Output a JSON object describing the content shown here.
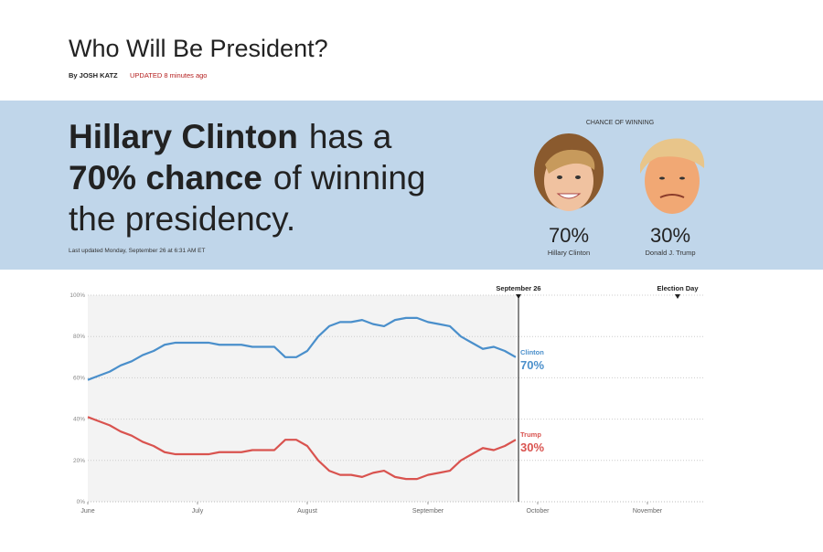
{
  "header": {
    "title": "Who Will Be President?",
    "byline": "By JOSH KATZ",
    "updated": "UPDATED 8 minutes ago"
  },
  "banner": {
    "headline": [
      "Hillary Clinton",
      "has a",
      "70% chance",
      "of winning",
      "the presidency."
    ],
    "last_updated": "Last updated Monday, September 26 at 6:31 AM ET",
    "chance_label": "CHANCE OF WINNING",
    "candidates": [
      {
        "name": "Hillary Clinton",
        "chance": "70%"
      },
      {
        "name": "Donald J. Trump",
        "chance": "30%"
      }
    ]
  },
  "chart_data": {
    "type": "line",
    "categories": [
      "June",
      null,
      null,
      null,
      null,
      null,
      null,
      null,
      null,
      null,
      "July",
      null,
      null,
      null,
      null,
      null,
      null,
      null,
      null,
      null,
      "August",
      null,
      null,
      null,
      null,
      null,
      null,
      null,
      null,
      null,
      null,
      "September",
      null,
      null,
      null,
      null,
      null,
      null,
      null,
      null,
      null,
      "October",
      null,
      null,
      null,
      null,
      null,
      null,
      null,
      null,
      null,
      "November",
      null,
      null,
      null,
      null,
      null
    ],
    "series": [
      {
        "name": "Clinton",
        "color": "#4a8fcb",
        "values": [
          59,
          61,
          63,
          66,
          68,
          71,
          73,
          76,
          77,
          77,
          77,
          77,
          76,
          76,
          76,
          75,
          75,
          75,
          70,
          70,
          73,
          80,
          85,
          87,
          87,
          88,
          86,
          85,
          88,
          89,
          89,
          87,
          86,
          85,
          80,
          77,
          74,
          75,
          73,
          70,
          null,
          null,
          null,
          null,
          null,
          null,
          null,
          null,
          null,
          null,
          null,
          null,
          null,
          null,
          null,
          null,
          null
        ],
        "value_labels": [
          null,
          null,
          null,
          null,
          null,
          null,
          null,
          null,
          null,
          null,
          null,
          null,
          null,
          null,
          null,
          null,
          null,
          null,
          null,
          null,
          null,
          null,
          null,
          null,
          null,
          null,
          null,
          null,
          null,
          null,
          null,
          null,
          null,
          null,
          null,
          null,
          null,
          null,
          null,
          "70%",
          null,
          null,
          null,
          null,
          null,
          null,
          null,
          null,
          null,
          null,
          null,
          null,
          null,
          null,
          null,
          null,
          null
        ]
      },
      {
        "name": "Trump",
        "color": "#d9534f",
        "values": [
          41,
          39,
          37,
          34,
          32,
          29,
          27,
          24,
          23,
          23,
          23,
          23,
          24,
          24,
          24,
          25,
          25,
          25,
          30,
          30,
          27,
          20,
          15,
          13,
          13,
          12,
          14,
          15,
          12,
          11,
          11,
          13,
          14,
          15,
          20,
          23,
          26,
          25,
          27,
          30,
          null,
          null,
          null,
          null,
          null,
          null,
          null,
          null,
          null,
          null,
          null,
          null,
          null,
          null,
          null,
          null,
          null
        ],
        "value_labels": [
          null,
          null,
          null,
          null,
          null,
          null,
          null,
          null,
          null,
          null,
          null,
          null,
          null,
          null,
          null,
          null,
          null,
          null,
          null,
          null,
          null,
          null,
          null,
          null,
          null,
          null,
          null,
          null,
          null,
          null,
          null,
          null,
          null,
          null,
          null,
          null,
          null,
          null,
          null,
          "30%",
          null,
          null,
          null,
          null,
          null,
          null,
          null,
          null,
          null,
          null,
          null,
          null,
          null,
          null,
          null,
          null,
          null
        ]
      }
    ],
    "annotations": [
      "September 26",
      "Election Day"
    ],
    "ylim": [
      0,
      100
    ],
    "yticks": [
      {
        "value": 0,
        "label": "0%"
      },
      {
        "value": 20,
        "label": "20%"
      },
      {
        "value": 40,
        "label": "40%"
      },
      {
        "value": 60,
        "label": "60%"
      },
      {
        "value": 80,
        "label": "80%"
      },
      {
        "value": 100,
        "label": "100%"
      }
    ],
    "grid": true
  }
}
